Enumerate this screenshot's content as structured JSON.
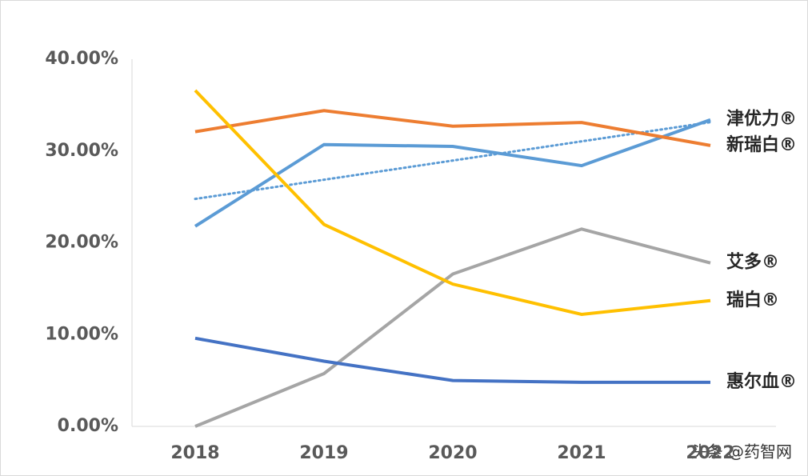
{
  "chart_data": {
    "type": "line",
    "categories": [
      "2018",
      "2019",
      "2020",
      "2021",
      "2022"
    ],
    "series": [
      {
        "name": "津优力®",
        "color": "#5b9bd5",
        "values": [
          21.8,
          30.7,
          30.5,
          28.4,
          33.4
        ],
        "trendline": "linear"
      },
      {
        "name": "新瑞白®",
        "color": "#ed7d31",
        "values": [
          32.1,
          34.4,
          32.7,
          33.1,
          30.6
        ]
      },
      {
        "name": "艾多®",
        "color": "#a5a5a5",
        "values": [
          0,
          5.75,
          16.6,
          21.5,
          17.8
        ]
      },
      {
        "name": "瑞白®",
        "color": "#ffc000",
        "values": [
          36.6,
          22.0,
          15.5,
          12.2,
          13.7
        ]
      },
      {
        "name": "惠尔血®",
        "color": "#4472c4",
        "values": [
          9.6,
          7.1,
          5.0,
          4.8,
          4.8
        ]
      }
    ],
    "ylim": [
      0,
      40
    ],
    "yticks": [
      {
        "value": 0,
        "label": "0.00%"
      },
      {
        "value": 10,
        "label": "10.00%"
      },
      {
        "value": 20,
        "label": "20.00%"
      },
      {
        "value": 30,
        "label": "30.00%"
      },
      {
        "value": 40,
        "label": "40.00%"
      }
    ],
    "grid": false,
    "watermark": "头条 @药智网"
  }
}
